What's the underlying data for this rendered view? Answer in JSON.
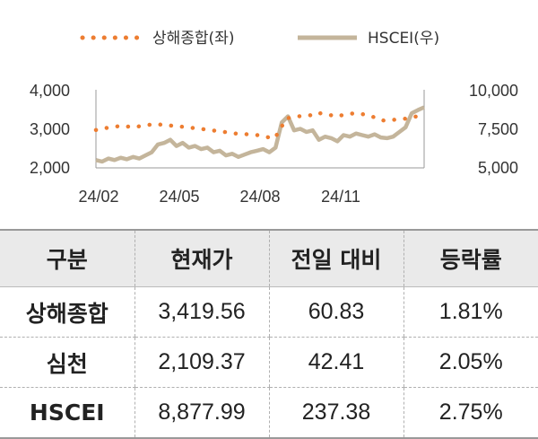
{
  "chart_data": {
    "type": "line",
    "legend": {
      "position": "top",
      "entries": [
        "상해종합(좌)",
        "HSCEI(우)"
      ]
    },
    "x_ticks": [
      "24/02",
      "24/05",
      "24/08",
      "24/11"
    ],
    "y_left": {
      "ticks": [
        "2,000",
        "3,000",
        "4,000"
      ],
      "range": [
        2000,
        4000
      ]
    },
    "y_right": {
      "ticks": [
        "5,000",
        "7,500",
        "10,000"
      ],
      "range": [
        5000,
        10000
      ]
    },
    "grid": false,
    "series": [
      {
        "name": "상해종합(좌)",
        "axis": "left",
        "color": "#ed7d31",
        "style": "dotted",
        "values": [
          2970,
          3010,
          3030,
          3050,
          3080,
          3060,
          3040,
          3070,
          3090,
          3120,
          3110,
          3100,
          3080,
          3060,
          3050,
          3030,
          3010,
          2990,
          2970,
          2950,
          2930,
          2900,
          2880,
          2870,
          2860,
          2850,
          2830,
          2800,
          2740,
          2900,
          3250,
          3300,
          3320,
          3330,
          3350,
          3420,
          3380,
          3360,
          3310,
          3350,
          3380,
          3400,
          3380,
          3360,
          3300,
          3220,
          3210,
          3230,
          3240,
          3260,
          3300,
          3320,
          3420
        ]
      },
      {
        "name": "HSCEI(우)",
        "axis": "right",
        "color": "#c4b59b",
        "style": "solid",
        "values": [
          5500,
          5400,
          5600,
          5500,
          5650,
          5550,
          5700,
          5600,
          5800,
          6000,
          6500,
          6600,
          6800,
          6400,
          6600,
          6300,
          6400,
          6200,
          6300,
          6000,
          6100,
          5800,
          5900,
          5700,
          5850,
          6000,
          6100,
          6200,
          6000,
          6300,
          7900,
          8300,
          7400,
          7500,
          7300,
          7400,
          6800,
          7000,
          6900,
          6700,
          7100,
          7000,
          7200,
          7100,
          7000,
          7150,
          6950,
          6900,
          7000,
          7300,
          7600,
          8500,
          8700,
          8880
        ]
      }
    ]
  },
  "table": {
    "headers": [
      "구분",
      "현재가",
      "전일 대비",
      "등락률"
    ],
    "rows": [
      {
        "name": "상해종합",
        "price": "3,419.56",
        "change": "60.83",
        "rate": "1.81%"
      },
      {
        "name": "심천",
        "price": "2,109.37",
        "change": "42.41",
        "rate": "2.05%"
      },
      {
        "name": "HSCEI",
        "price": "8,877.99",
        "change": "237.38",
        "rate": "2.75%"
      }
    ]
  }
}
